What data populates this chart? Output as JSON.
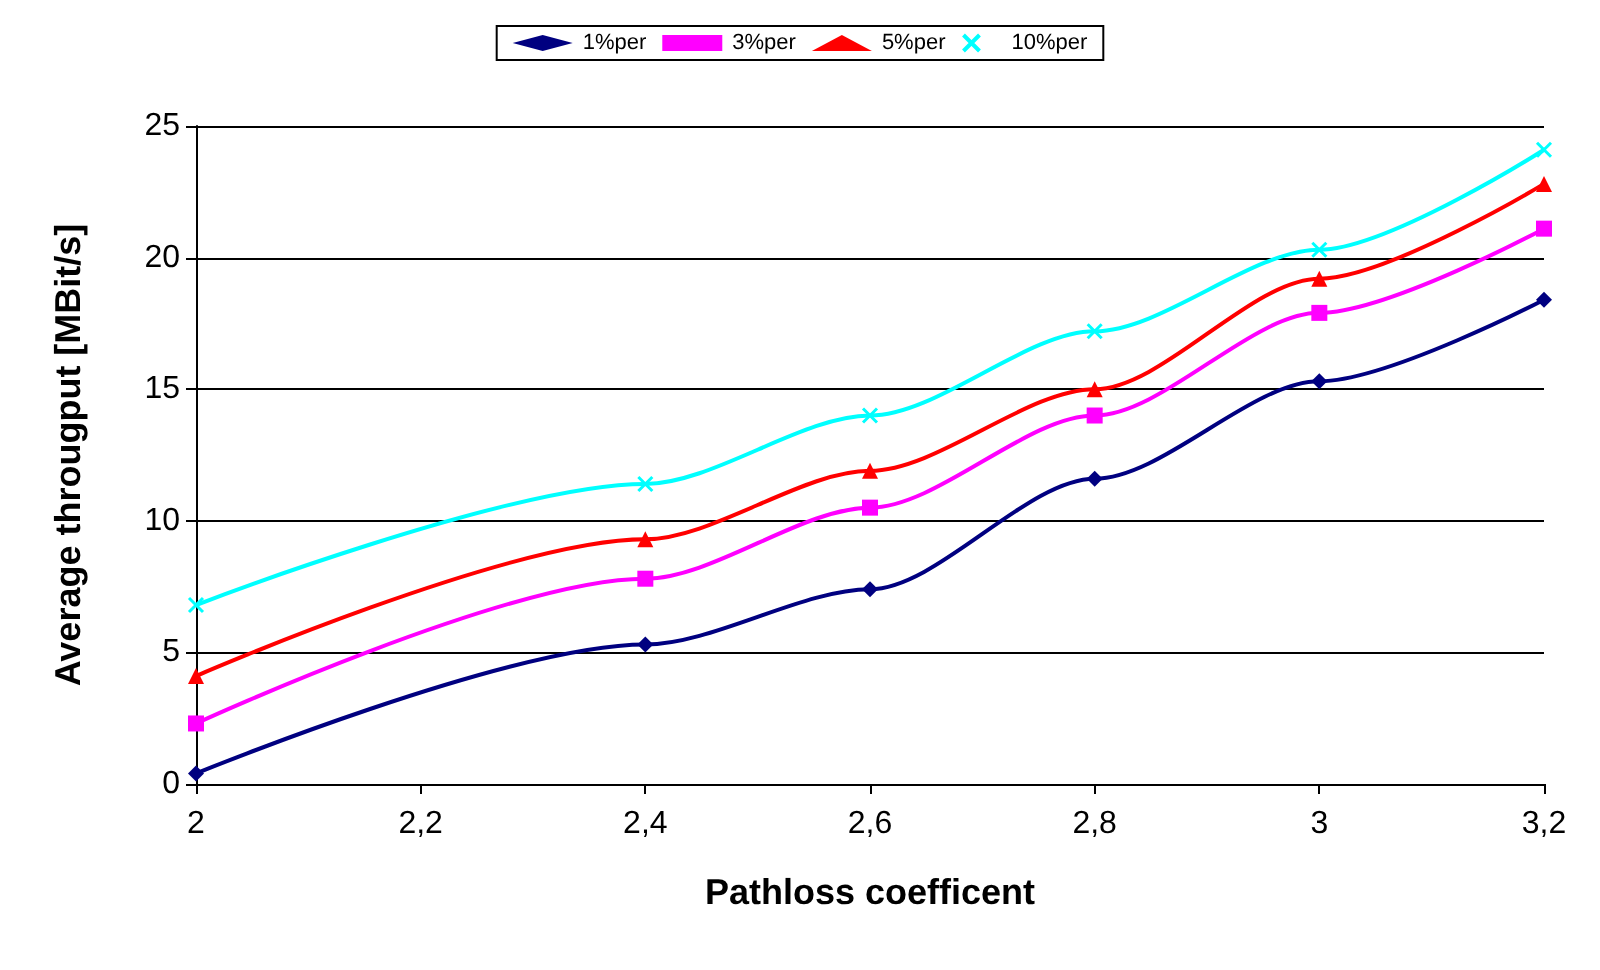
{
  "chart_data": {
    "type": "line",
    "xlabel": "Pathloss coefficent",
    "ylabel": "Average througput [MBit/s]",
    "x": [
      2,
      2.4,
      2.6,
      2.8,
      3,
      3.2
    ],
    "series": [
      {
        "name": "1%per",
        "color": "#000080",
        "marker": "diamond",
        "values": [
          0.4,
          5.3,
          7.4,
          11.6,
          15.3,
          18.4
        ]
      },
      {
        "name": "3%per",
        "color": "#ff00ff",
        "marker": "square",
        "values": [
          2.3,
          7.8,
          10.5,
          14.0,
          17.9,
          21.1
        ]
      },
      {
        "name": "5%per",
        "color": "#ff0000",
        "marker": "triangle",
        "values": [
          4.1,
          9.3,
          11.9,
          15.0,
          19.2,
          22.8
        ]
      },
      {
        "name": "10%per",
        "color": "#00ffff",
        "marker": "cross",
        "values": [
          6.8,
          11.4,
          14.0,
          17.2,
          20.3,
          24.1
        ]
      }
    ],
    "xlim": [
      2,
      3.2
    ],
    "xticks": [
      2,
      {
        "value": 2.2,
        "label": "2,2"
      },
      {
        "value": 2.4,
        "label": "2,4"
      },
      {
        "value": 2.6,
        "label": "2,6"
      },
      {
        "value": 2.8,
        "label": "2,8"
      },
      3,
      {
        "value": 3.2,
        "label": "3,2"
      }
    ],
    "ylim": [
      0,
      25
    ],
    "yticks": [
      0,
      5,
      10,
      15,
      20,
      25
    ],
    "grid": "y",
    "legend": "top",
    "line_style": "solid"
  }
}
